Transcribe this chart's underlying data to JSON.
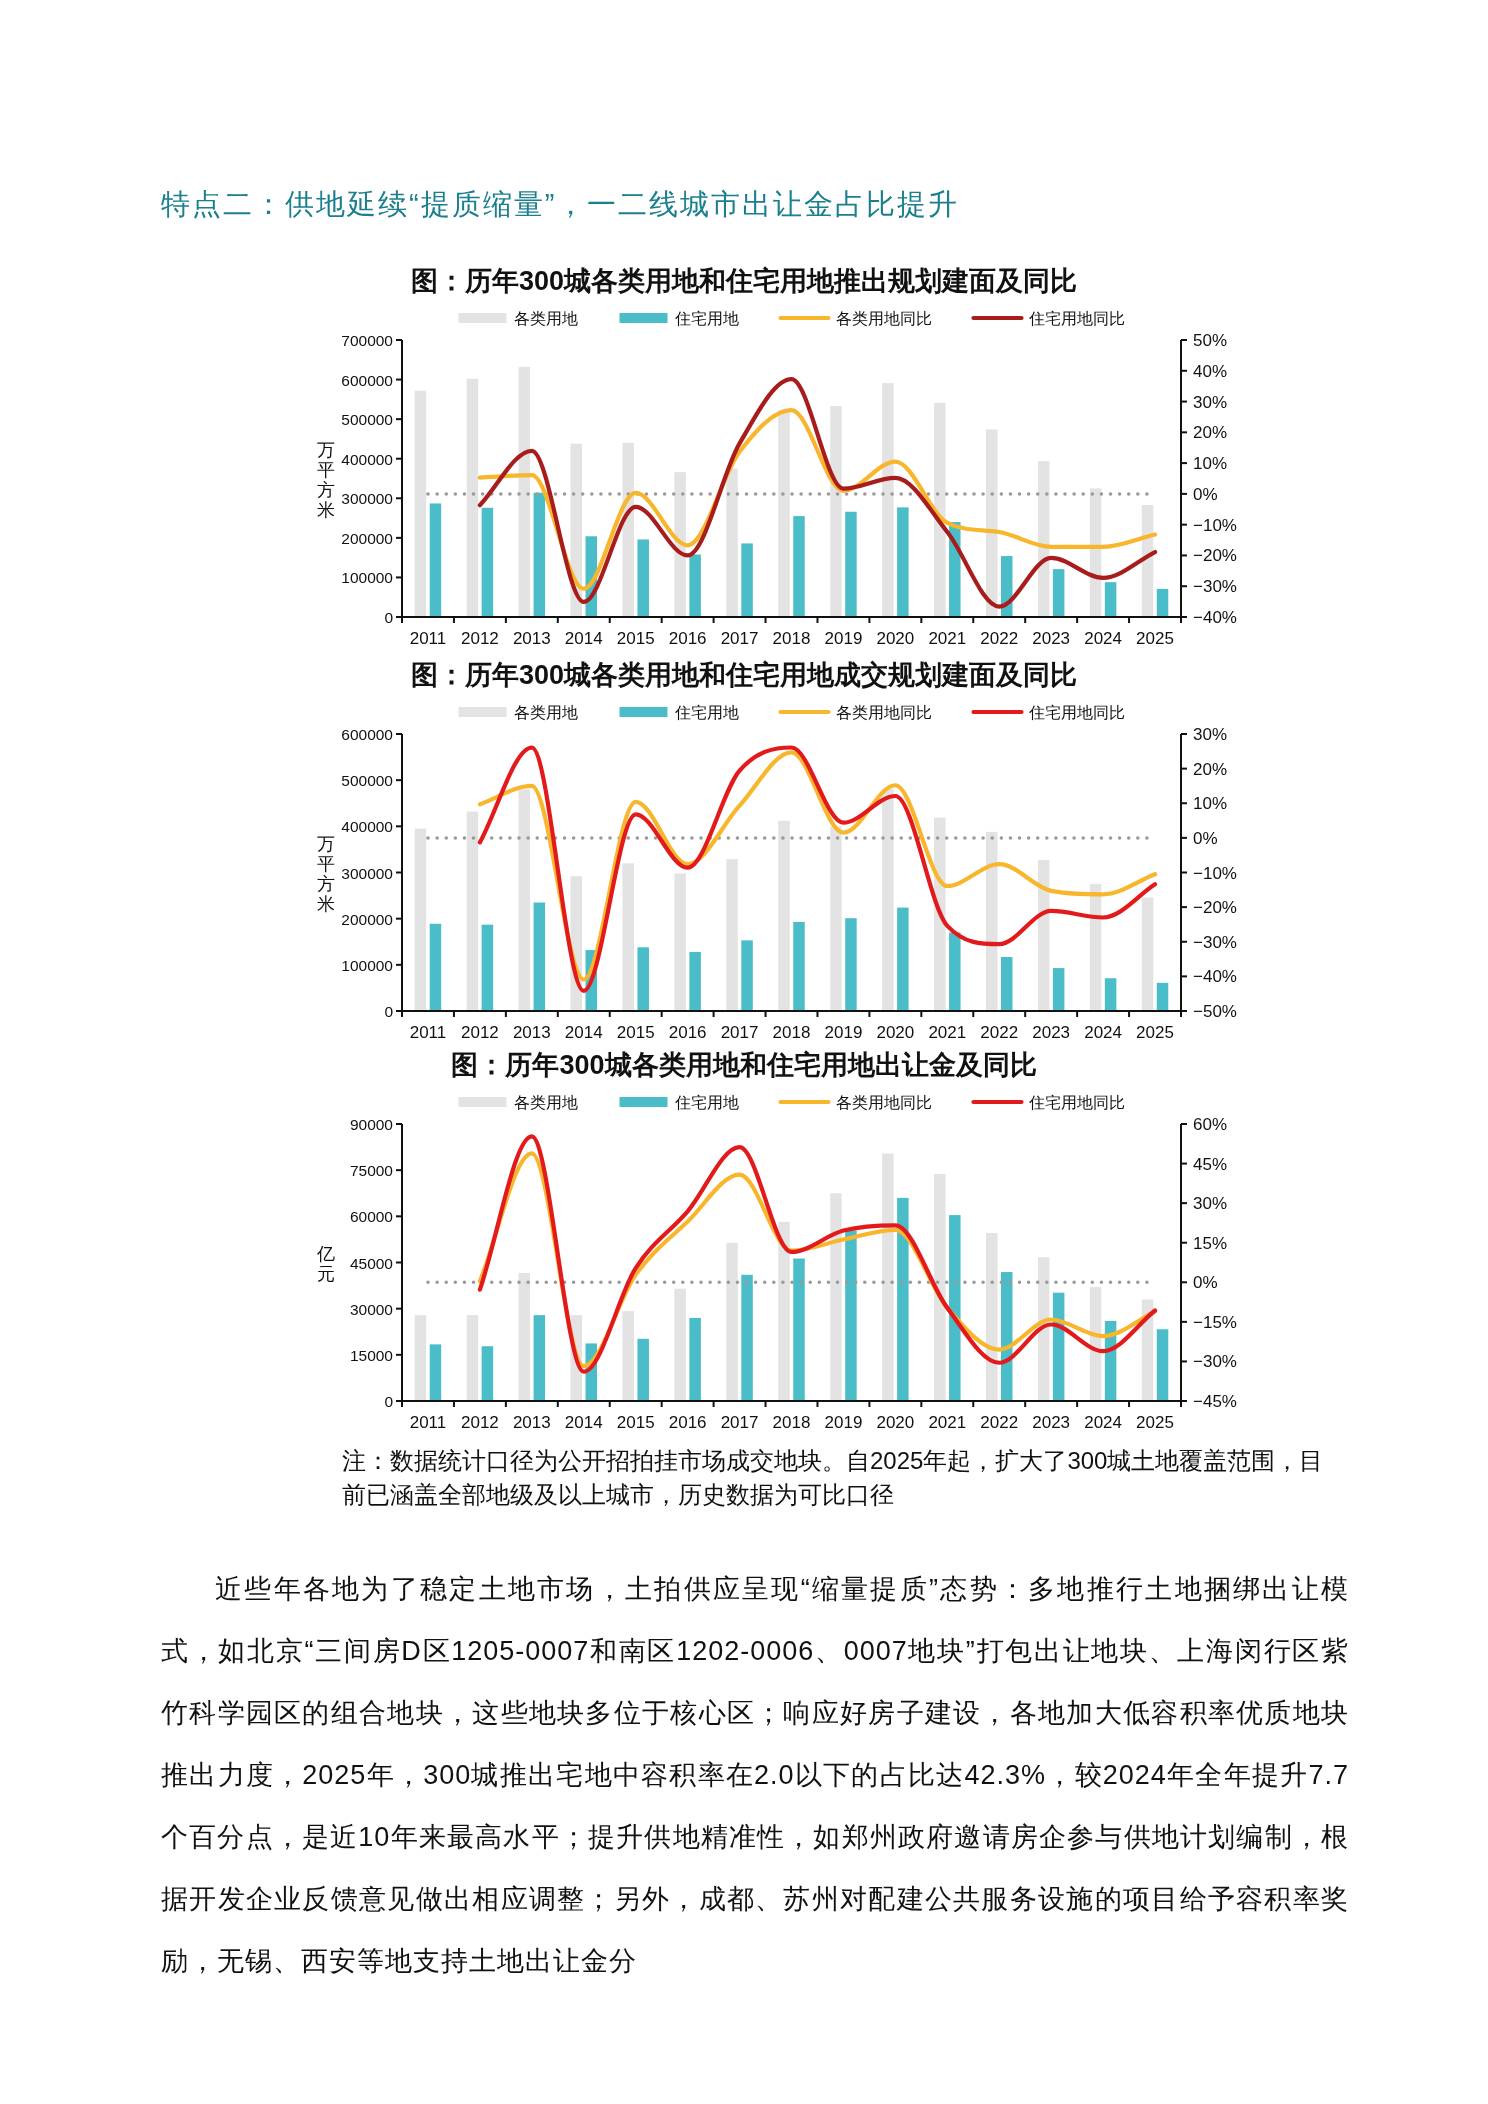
{
  "chart_data": [
    {
      "type": "other",
      "title": "特点二：供地延续“提质缩量”，一二线城市出让金占比提升"
    },
    {
      "type": "bar",
      "title": "图：历年300城各类用地和住宅用地推出规划建面及同比",
      "ylabel": "万平方米",
      "legend": "top",
      "grid": false,
      "categories": [
        "2011",
        "2012",
        "2013",
        "2014",
        "2015",
        "2016",
        "2017",
        "2018",
        "2019",
        "2020",
        "2021",
        "2022",
        "2023",
        "2024",
        "2025"
      ],
      "series": [
        {
          "name": "各类用地",
          "type": "bar",
          "color": "#e3e3e3",
          "values": [
            572000,
            602000,
            632000,
            438000,
            440000,
            366000,
            375000,
            523000,
            533000,
            591000,
            541000,
            474000,
            394000,
            325000,
            283000
          ]
        },
        {
          "name": "住宅用地",
          "type": "bar",
          "color": "#4bbdc9",
          "values": [
            287000,
            276000,
            314000,
            204000,
            196000,
            158000,
            186000,
            255000,
            266000,
            277000,
            240000,
            154000,
            121000,
            88000,
            71000
          ]
        },
        {
          "name": "各类用地同比",
          "type": "line",
          "axis": "y2",
          "color": "#f8b62d",
          "values": [
            null,
            5.3,
            6.1,
            -30.8,
            0.3,
            -16.7,
            13.7,
            27.2,
            1.0,
            10.5,
            -9.4,
            -12.4,
            -17.2,
            -17.2,
            -13.2
          ]
        },
        {
          "name": "住宅用地同比",
          "type": "line",
          "axis": "y2",
          "color": "#a81c1c",
          "values": [
            null,
            -3.7,
            14.0,
            -35.1,
            -4.2,
            -20.0,
            16.4,
            37.3,
            1.7,
            5.2,
            -12.4,
            -36.6,
            -20.8,
            -27.3,
            -18.9
          ]
        }
      ],
      "ylim": [
        0,
        700000
      ],
      "yticks": [
        0,
        100000,
        200000,
        300000,
        400000,
        500000,
        600000,
        700000
      ],
      "y2lim": [
        -40,
        50
      ],
      "y2ticks": [
        {
          "value": -40,
          "label": "−40%"
        },
        {
          "value": -30,
          "label": "−30%"
        },
        {
          "value": -20,
          "label": "−20%"
        },
        {
          "value": -10,
          "label": "−10%"
        },
        {
          "value": 0,
          "label": "0%"
        },
        {
          "value": 10,
          "label": "10%"
        },
        {
          "value": 20,
          "label": "20%"
        },
        {
          "value": 30,
          "label": "30%"
        },
        {
          "value": 40,
          "label": "40%"
        },
        {
          "value": 50,
          "label": "50%"
        }
      ],
      "ref_lines": [
        {
          "axis": "y2",
          "value": 0,
          "color": "#9a9a9a",
          "line_style": "dotted"
        }
      ]
    },
    {
      "type": "bar",
      "title": "图：历年300城各类用地和住宅用地成交规划建面及同比",
      "ylabel": "万平方米",
      "legend": "top",
      "grid": false,
      "categories": [
        "2011",
        "2012",
        "2013",
        "2014",
        "2015",
        "2016",
        "2017",
        "2018",
        "2019",
        "2020",
        "2021",
        "2022",
        "2023",
        "2024",
        "2025"
      ],
      "series": [
        {
          "name": "各类用地",
          "type": "bar",
          "color": "#e3e3e3",
          "values": [
            395000,
            432000,
            480000,
            292000,
            320000,
            298000,
            329000,
            412000,
            400000,
            481000,
            419000,
            388000,
            327000,
            275000,
            246000
          ]
        },
        {
          "name": "住宅用地",
          "type": "bar",
          "color": "#4bbdc9",
          "values": [
            189000,
            187000,
            235000,
            132000,
            138000,
            128000,
            153000,
            193000,
            201000,
            224000,
            170000,
            117000,
            93000,
            71000,
            61000
          ]
        },
        {
          "name": "各类用地同比",
          "type": "line",
          "axis": "y2",
          "color": "#f8b62d",
          "values": [
            null,
            9.7,
            15.0,
            -40.9,
            10.4,
            -7.6,
            9.3,
            24.7,
            1.5,
            15.2,
            -13.9,
            -7.6,
            -15.3,
            -16.3,
            -10.5
          ]
        },
        {
          "name": "住宅用地同比",
          "type": "line",
          "axis": "y2",
          "color": "#e31a1c",
          "values": [
            null,
            -1.3,
            26.1,
            -44.2,
            6.8,
            -8.6,
            19.4,
            26.1,
            4.4,
            12.1,
            -25.4,
            -30.7,
            -21.1,
            -23.0,
            -13.4
          ]
        }
      ],
      "ylim": [
        0,
        600000
      ],
      "yticks": [
        0,
        100000,
        200000,
        300000,
        400000,
        500000,
        600000
      ],
      "y2lim": [
        -50,
        30
      ],
      "y2ticks": [
        {
          "value": -50,
          "label": "−50%"
        },
        {
          "value": -40,
          "label": "−40%"
        },
        {
          "value": -30,
          "label": "−30%"
        },
        {
          "value": -20,
          "label": "−20%"
        },
        {
          "value": -10,
          "label": "−10%"
        },
        {
          "value": 0,
          "label": "0%"
        },
        {
          "value": 10,
          "label": "10%"
        },
        {
          "value": 20,
          "label": "20%"
        },
        {
          "value": 30,
          "label": "30%"
        }
      ],
      "ref_lines": [
        {
          "axis": "y2",
          "value": 0,
          "color": "#9a9a9a",
          "line_style": "dotted"
        }
      ]
    },
    {
      "type": "bar",
      "title": "图：历年300城各类用地和住宅用地出让金及同比",
      "ylabel": "亿元",
      "legend": "top",
      "grid": false,
      "categories": [
        "2011",
        "2012",
        "2013",
        "2014",
        "2015",
        "2016",
        "2017",
        "2018",
        "2019",
        "2020",
        "2021",
        "2022",
        "2023",
        "2024",
        "2025"
      ],
      "series": [
        {
          "name": "各类用地",
          "type": "bar",
          "color": "#e3e3e3",
          "values": [
            27900,
            27900,
            41600,
            27900,
            29200,
            36500,
            51400,
            58200,
            67500,
            80400,
            73800,
            54600,
            46700,
            37000,
            33000
          ]
        },
        {
          "name": "住宅用地",
          "type": "bar",
          "color": "#4bbdc9",
          "values": [
            18400,
            17800,
            27900,
            18700,
            20200,
            27000,
            41000,
            46300,
            55400,
            66000,
            60400,
            41900,
            35200,
            26000,
            23300
          ]
        },
        {
          "name": "各类用地同比",
          "type": "line",
          "axis": "y2",
          "color": "#f8b62d",
          "values": [
            null,
            0.4,
            48.9,
            -31.8,
            2.9,
            23.0,
            40.8,
            12.0,
            16.2,
            19.9,
            -9.7,
            -25.5,
            -14.1,
            -20.4,
            -11.0
          ]
        },
        {
          "name": "住宅用地同比",
          "type": "line",
          "axis": "y2",
          "color": "#e31a1c",
          "values": [
            null,
            -2.8,
            55.3,
            -33.9,
            5.4,
            26.9,
            51.2,
            11.5,
            19.6,
            21.6,
            -9.7,
            -30.5,
            -16.0,
            -26.1,
            -10.7
          ]
        }
      ],
      "ylim": [
        0,
        90000
      ],
      "yticks": [
        0,
        15000,
        30000,
        45000,
        60000,
        75000,
        90000
      ],
      "y2lim": [
        -45,
        60
      ],
      "y2ticks": [
        {
          "value": -45,
          "label": "−45%"
        },
        {
          "value": -30,
          "label": "−30%"
        },
        {
          "value": -15,
          "label": "−15%"
        },
        {
          "value": 0,
          "label": "0%"
        },
        {
          "value": 15,
          "label": "15%"
        },
        {
          "value": 30,
          "label": "30%"
        },
        {
          "value": 45,
          "label": "45%"
        },
        {
          "value": 60,
          "label": "60%"
        }
      ],
      "ref_lines": [
        {
          "axis": "y2",
          "value": 0,
          "color": "#9a9a9a",
          "line_style": "dotted"
        }
      ],
      "annotations": [
        "注：数据统计口径为公开招拍挂市场成交地块。自2025年起，扩大了300城土地覆盖范围，目前已涵盖全部地级及以上城市，历史数据为可比口径"
      ]
    },
    {
      "type": "other",
      "annotations": [
        "近些年各地为了稳定土地市场，土拍供应呈现“缩量提质”态势：多地推行土地捆绑出让模式，如北京“三间房D区1205-0007和南区1202-0006、0007地块”打包出让地块、上海闵行区紫竹科学园区的组合地块，这些地块多位于核心区；响应好房子建设，各地加大低容积率优质地块推出力度，2025年，300城推出宅地中容积率在2.0以下的占比达42.3%，较2024年全年提升7.7个百分点，是近10年来最高水平；提升供地精准性，如郑州政府邀请房企参与供地计划编制，根据开发企业反馈意见做出相应调整；另外，成都、苏州对配建公共服务设施的项目给予容积率奖励，无锡、西安等地支持土地出让金分"
      ]
    }
  ]
}
